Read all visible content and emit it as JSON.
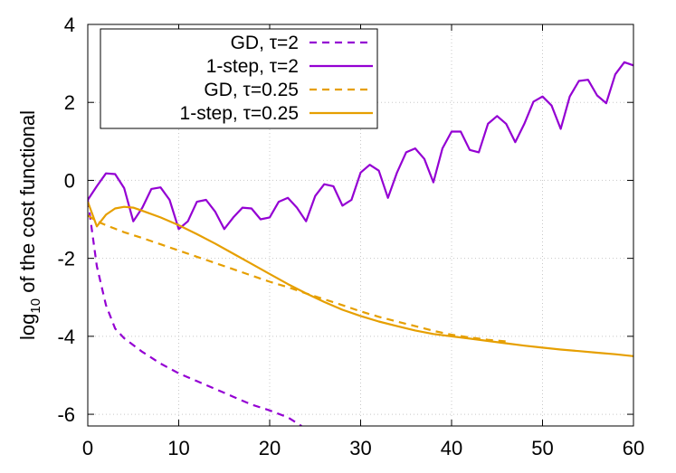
{
  "chart_data": {
    "type": "line",
    "title": "",
    "xlabel": "",
    "ylabel": "log10 of the cost functional",
    "ylabel_parts": {
      "pre": "log",
      "sub": "10",
      "post": " of the cost functional"
    },
    "xlim": [
      0,
      60
    ],
    "ylim": [
      -6.3,
      4
    ],
    "xticks": [
      0,
      10,
      20,
      30,
      40,
      50,
      60
    ],
    "xtick_labels": [
      "0",
      "10",
      "20",
      "30",
      "40",
      "50",
      "60"
    ],
    "yticks": [
      -6,
      -4,
      -2,
      0,
      2,
      4
    ],
    "ytick_labels": [
      "-6",
      "-4",
      "-2",
      "0",
      "2",
      "4"
    ],
    "grid": true,
    "legend_position": "top-left",
    "series": [
      {
        "name": "GD, τ=2",
        "color": "#9400d3",
        "dash": "dashed",
        "x": [
          0,
          1,
          2,
          3,
          4,
          6,
          8,
          10,
          12,
          14,
          16,
          18,
          20,
          22,
          23.5
        ],
        "y": [
          -0.5,
          -2.2,
          -3.2,
          -3.8,
          -4.05,
          -4.4,
          -4.7,
          -4.95,
          -5.15,
          -5.35,
          -5.55,
          -5.75,
          -5.9,
          -6.08,
          -6.3
        ]
      },
      {
        "name": "1-step, τ=2",
        "color": "#9400d3",
        "dash": "solid",
        "x": [
          0,
          1,
          2,
          3,
          4,
          5,
          6,
          7,
          8,
          9,
          10,
          11,
          12,
          13,
          14,
          15,
          16,
          17,
          18,
          19,
          20,
          21,
          22,
          23,
          24,
          25,
          26,
          27,
          28,
          29,
          30,
          31,
          32,
          33,
          34,
          35,
          36,
          37,
          38,
          39,
          40,
          41,
          42,
          43,
          44,
          45,
          46,
          47,
          48,
          49,
          50,
          51,
          52,
          53,
          54,
          55,
          56,
          57,
          58,
          59,
          60
        ],
        "y": [
          -0.5,
          -0.15,
          0.18,
          0.16,
          -0.2,
          -1.05,
          -0.7,
          -0.22,
          -0.18,
          -0.5,
          -1.25,
          -1.05,
          -0.55,
          -0.5,
          -0.8,
          -1.25,
          -0.95,
          -0.7,
          -0.72,
          -1.0,
          -0.95,
          -0.55,
          -0.45,
          -0.7,
          -1.05,
          -0.4,
          -0.1,
          -0.15,
          -0.65,
          -0.5,
          0.2,
          0.4,
          0.25,
          -0.45,
          0.2,
          0.72,
          0.82,
          0.55,
          -0.05,
          0.82,
          1.25,
          1.25,
          0.78,
          0.72,
          1.45,
          1.65,
          1.45,
          0.98,
          1.45,
          2.02,
          2.15,
          1.92,
          1.32,
          2.15,
          2.55,
          2.58,
          2.18,
          1.98,
          2.72,
          3.03,
          2.95
        ]
      },
      {
        "name": "GD, τ=0.25",
        "color": "#e69f00",
        "dash": "dashed",
        "x": [
          0,
          1,
          2,
          4,
          6,
          8,
          10,
          12,
          14,
          16,
          18,
          20,
          22,
          24,
          26,
          28,
          30,
          32,
          34,
          36,
          38,
          40,
          42,
          44,
          46
        ],
        "y": [
          -0.9,
          -1.05,
          -1.15,
          -1.33,
          -1.48,
          -1.64,
          -1.8,
          -1.96,
          -2.12,
          -2.28,
          -2.44,
          -2.6,
          -2.74,
          -2.9,
          -3.05,
          -3.2,
          -3.36,
          -3.5,
          -3.62,
          -3.74,
          -3.86,
          -3.96,
          -4.03,
          -4.09,
          -4.13
        ]
      },
      {
        "name": "1-step, τ=0.25",
        "color": "#e69f00",
        "dash": "solid",
        "x": [
          0,
          1,
          2,
          3,
          4,
          5,
          6,
          8,
          10,
          12,
          14,
          16,
          18,
          20,
          22,
          24,
          26,
          28,
          30,
          32,
          34,
          36,
          38,
          40,
          42,
          44,
          46,
          48,
          50,
          52,
          54,
          56,
          58,
          60
        ],
        "y": [
          -0.55,
          -1.18,
          -0.88,
          -0.72,
          -0.68,
          -0.7,
          -0.78,
          -0.95,
          -1.15,
          -1.38,
          -1.62,
          -1.88,
          -2.14,
          -2.4,
          -2.66,
          -2.9,
          -3.12,
          -3.32,
          -3.48,
          -3.62,
          -3.74,
          -3.85,
          -3.94,
          -4.0,
          -4.06,
          -4.12,
          -4.18,
          -4.24,
          -4.29,
          -4.34,
          -4.38,
          -4.42,
          -4.46,
          -4.51
        ]
      }
    ]
  }
}
